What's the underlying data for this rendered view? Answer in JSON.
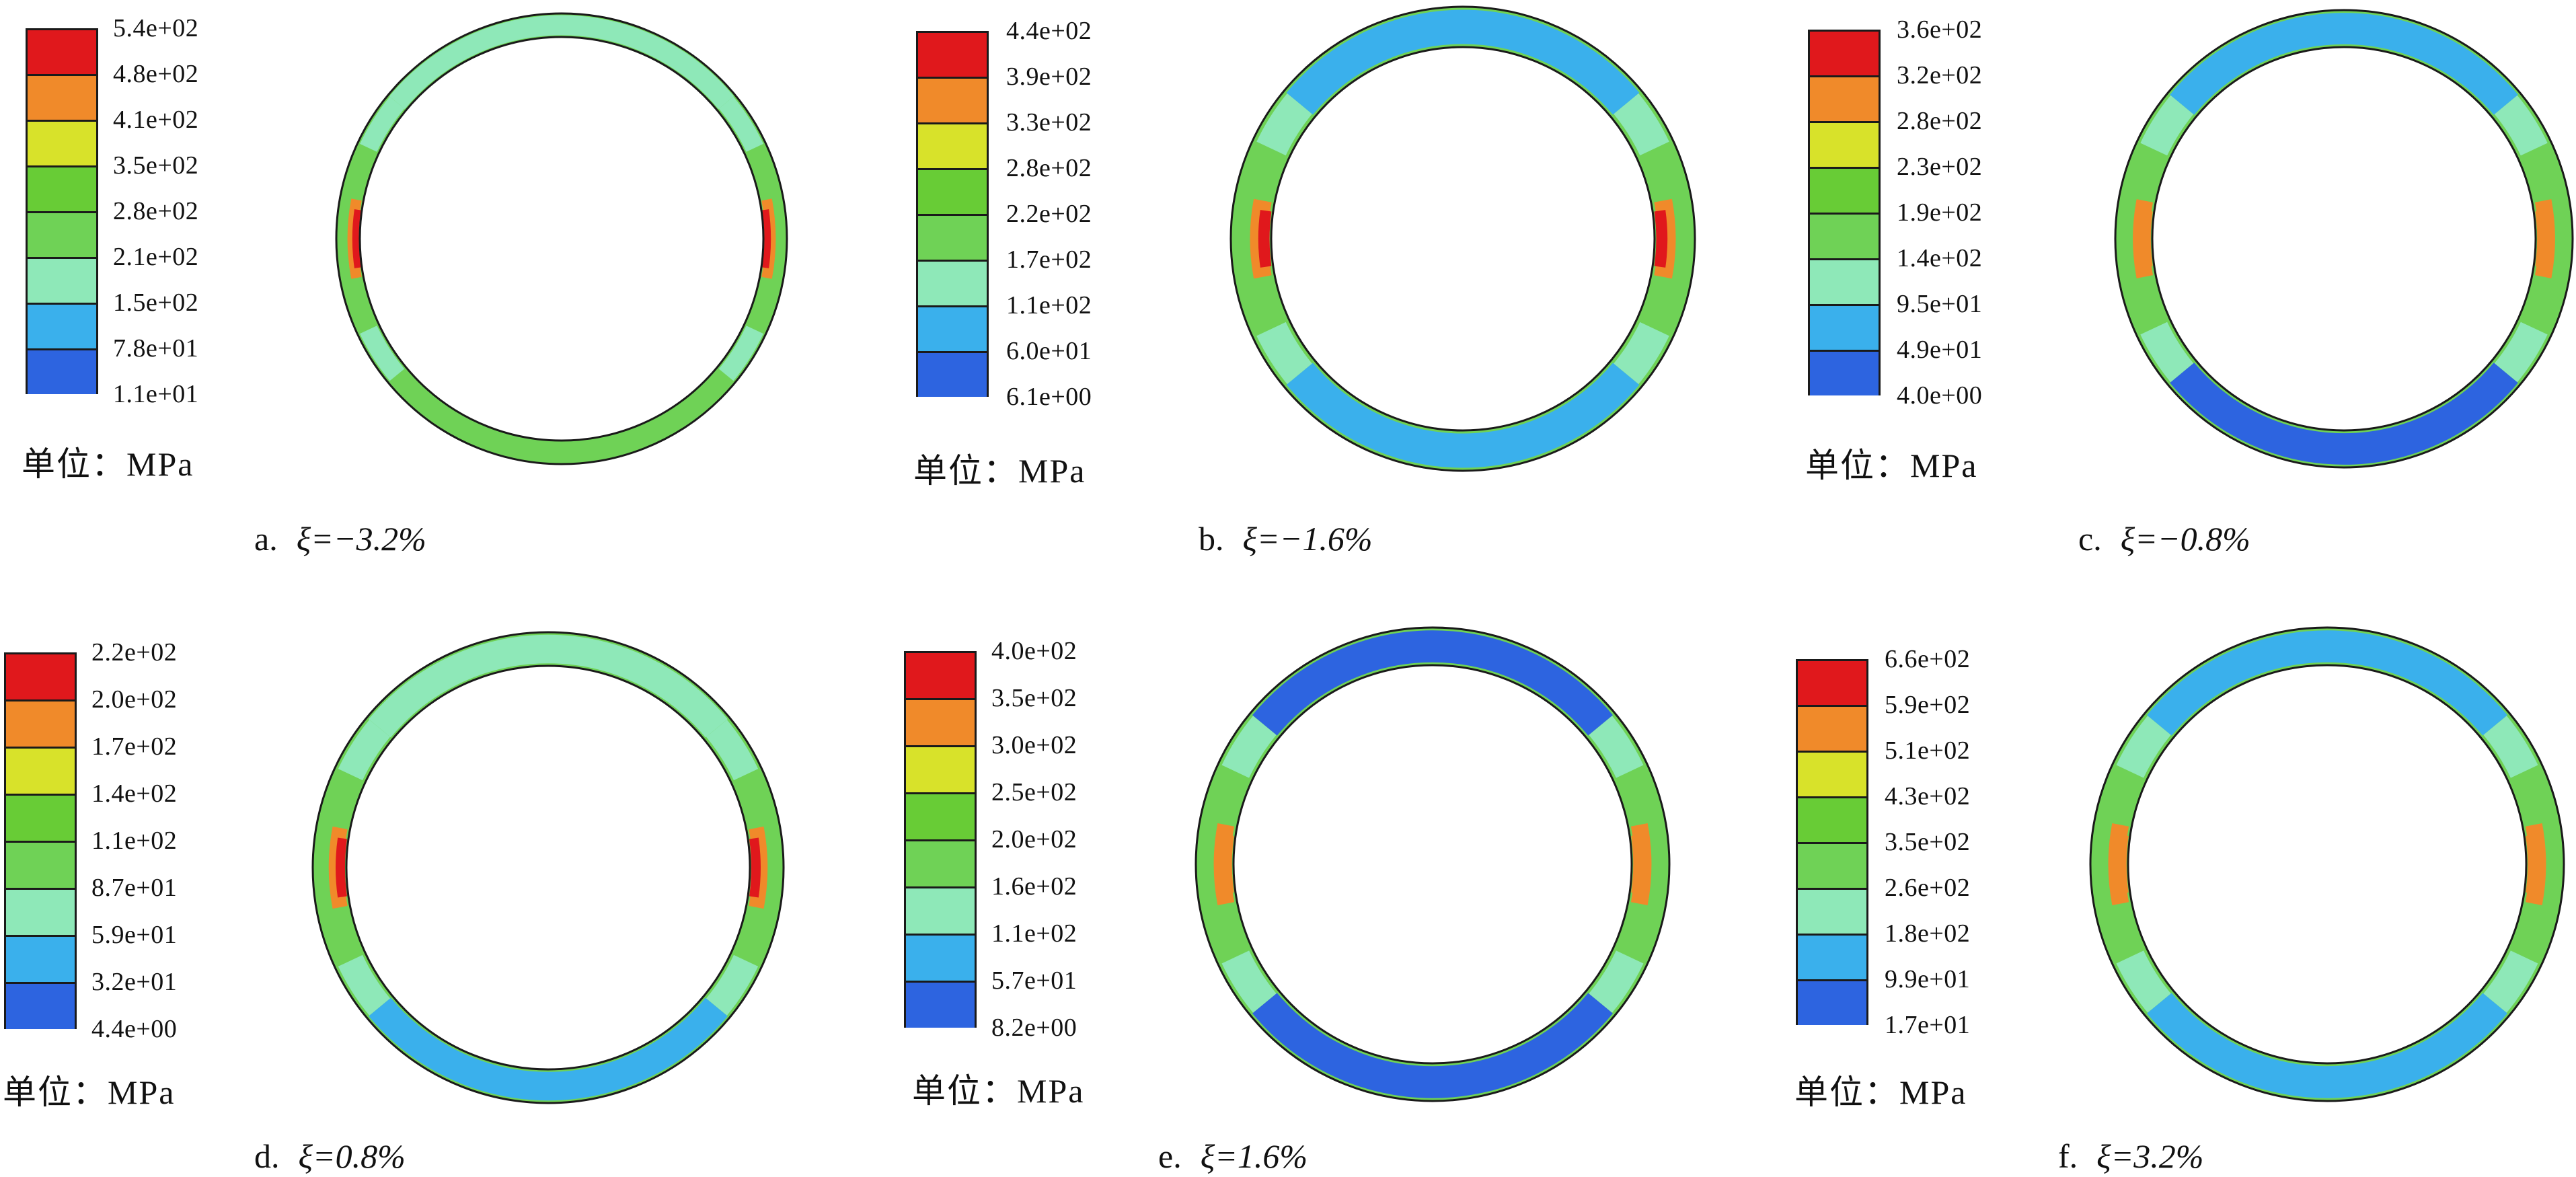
{
  "unit_label": "单位：MPa",
  "colors": [
    "#e0181c",
    "#f08a2a",
    "#d8e22a",
    "#68cc36",
    "#6fd256",
    "#8ee8b8",
    "#3ab0ec",
    "#2d64e0"
  ],
  "panels": [
    {
      "letter": "a.",
      "xi": "ξ=−3.2%",
      "legend": [
        "5.4e+02",
        "4.8e+02",
        "4.1e+02",
        "3.5e+02",
        "2.8e+02",
        "2.1e+02",
        "1.5e+02",
        "7.8e+01",
        "1.1e+01"
      ]
    },
    {
      "letter": "b.",
      "xi": "ξ=−1.6%",
      "legend": [
        "4.4e+02",
        "3.9e+02",
        "3.3e+02",
        "2.8e+02",
        "2.2e+02",
        "1.7e+02",
        "1.1e+02",
        "6.0e+01",
        "6.1e+00"
      ]
    },
    {
      "letter": "c.",
      "xi": "ξ=−0.8%",
      "legend": [
        "3.6e+02",
        "3.2e+02",
        "2.8e+02",
        "2.3e+02",
        "1.9e+02",
        "1.4e+02",
        "9.5e+01",
        "4.9e+01",
        "4.0e+00"
      ]
    },
    {
      "letter": "d.",
      "xi": "ξ=0.8%",
      "legend": [
        "2.2e+02",
        "2.0e+02",
        "1.7e+02",
        "1.4e+02",
        "1.1e+02",
        "8.7e+01",
        "5.9e+01",
        "3.2e+01",
        "4.4e+00"
      ]
    },
    {
      "letter": "e.",
      "xi": "ξ=1.6%",
      "legend": [
        "4.0e+02",
        "3.5e+02",
        "3.0e+02",
        "2.5e+02",
        "2.0e+02",
        "1.6e+02",
        "1.1e+02",
        "5.7e+01",
        "8.2e+00"
      ]
    },
    {
      "letter": "f.",
      "xi": "ξ=3.2%",
      "legend": [
        "6.6e+02",
        "5.9e+02",
        "5.1e+02",
        "4.3e+02",
        "3.5e+02",
        "2.6e+02",
        "1.8e+02",
        "9.9e+01",
        "1.7e+01"
      ]
    }
  ]
}
